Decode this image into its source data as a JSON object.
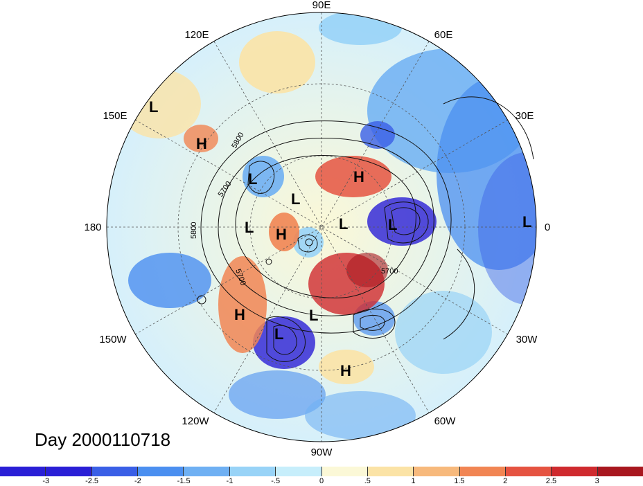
{
  "title": "Day 2000110718",
  "longitude_labels": [
    "90E",
    "60E",
    "30E",
    "0",
    "30W",
    "60W",
    "90W",
    "120W",
    "150W",
    "180",
    "150E",
    "120E"
  ],
  "contour_labels": [
    "5800",
    "5700",
    "5800",
    "5700",
    "5700"
  ],
  "pressure_centers": [
    {
      "type": "L",
      "region": "far east Siberia / Pacific"
    },
    {
      "type": "H",
      "region": "Sea of Okhotsk"
    },
    {
      "type": "L",
      "region": "Kamchatka"
    },
    {
      "type": "H",
      "region": "Central Siberia"
    },
    {
      "type": "L",
      "region": "North Siberia"
    },
    {
      "type": "L",
      "region": "Bering Strait"
    },
    {
      "type": "H",
      "region": "Alaska"
    },
    {
      "type": "L",
      "region": "Arctic Ocean"
    },
    {
      "type": "L",
      "region": "Scandinavia"
    },
    {
      "type": "L",
      "region": "Eastern Atlantic"
    },
    {
      "type": "H",
      "region": "Gulf of Alaska"
    },
    {
      "type": "L",
      "region": "Hudson Bay"
    },
    {
      "type": "L",
      "region": "Western USA"
    },
    {
      "type": "H",
      "region": "Caribbean"
    }
  ],
  "colorbar": {
    "colors": [
      "#2a1fd6",
      "#3a5fe6",
      "#4b8ff0",
      "#6fb0f3",
      "#98d3f7",
      "#c7eefb",
      "#fbf8d7",
      "#fbe3a6",
      "#f7b97c",
      "#f18553",
      "#e55341",
      "#cf2a2e",
      "#a8171f"
    ],
    "ticks": [
      "-3",
      "-2.5",
      "-2",
      "-1.5",
      "-1",
      "-.5",
      "0",
      ".5",
      "1",
      "1.5",
      "2",
      "2.5",
      "3"
    ]
  }
}
